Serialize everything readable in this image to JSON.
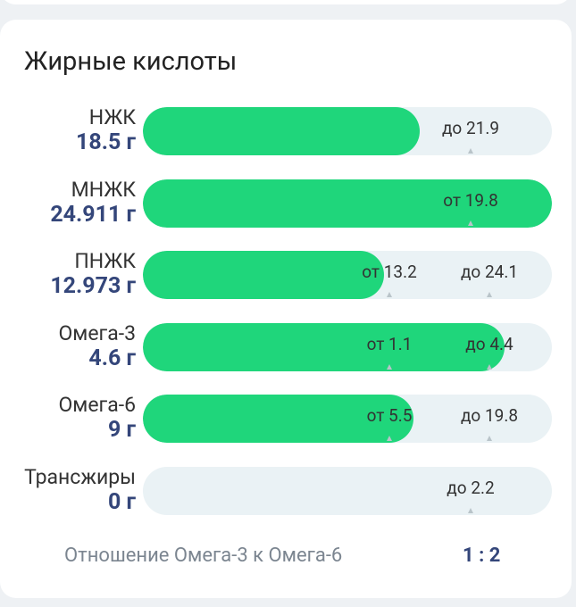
{
  "header": {
    "title": "Жирные кислоты"
  },
  "rows": [
    {
      "name": "НЖК",
      "amount": {
        "value": 18.5,
        "label": "18.5 г"
      },
      "limits": [
        "до 21.9"
      ]
    },
    {
      "name": "МНЖК",
      "amount": {
        "value": 24.911,
        "label": "24.911 г"
      },
      "limits": [
        "от 19.8"
      ]
    },
    {
      "name": "ПНЖК",
      "amount": {
        "value": 12.973,
        "label": "12.973 г"
      },
      "limits": [
        "от 13.2",
        "до 24.1"
      ]
    },
    {
      "name": "Омега-3",
      "amount": {
        "value": 4.6,
        "label": "4.6 г"
      },
      "limits": [
        "от 1.1",
        "до 4.4"
      ]
    },
    {
      "name": "Омега-6",
      "amount": {
        "value": 9,
        "label": "9 г"
      },
      "limits": [
        "от 5.5",
        "до 19.8"
      ]
    },
    {
      "name": "Трансжиры",
      "amount": {
        "value": 0,
        "label": "0 г"
      },
      "limits": [
        "до 2.2"
      ]
    }
  ],
  "footer": {
    "label": "Отношение Омега-3 к Омега-6",
    "ratio": "1 : 2"
  }
}
